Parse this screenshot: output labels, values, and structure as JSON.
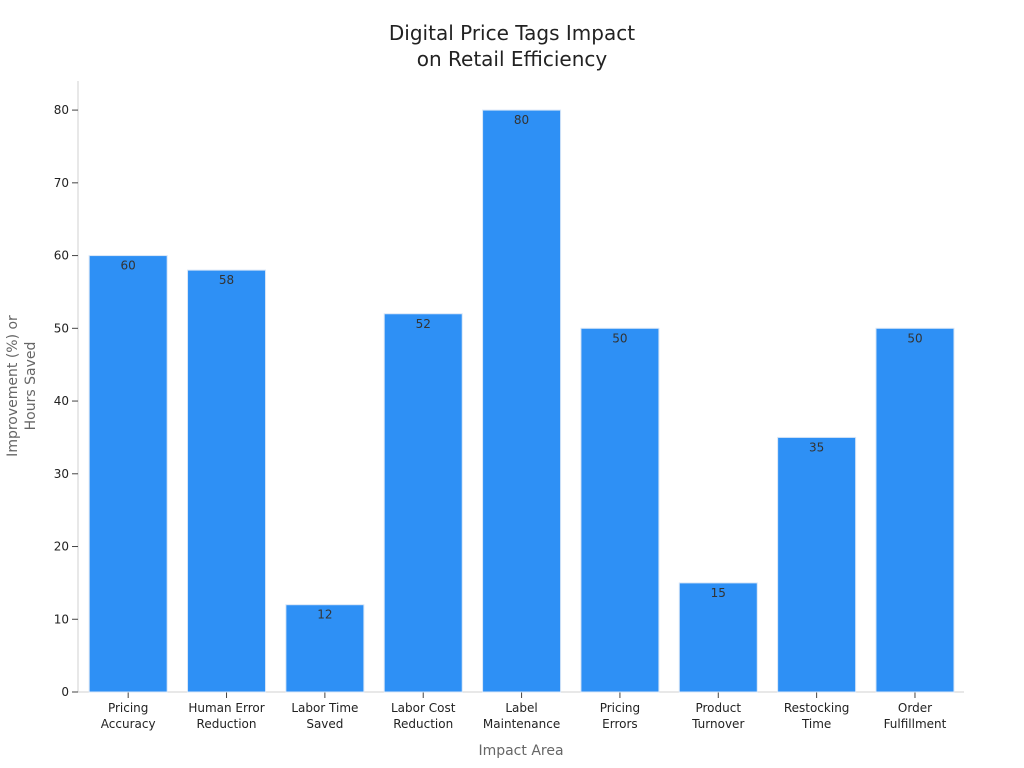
{
  "chart_data": {
    "type": "bar",
    "title": "Digital Price Tags Impact on Retail Efficiency",
    "title_lines": [
      "Digital Price Tags Impact",
      "on Retail Efficiency"
    ],
    "xlabel": "Impact Area",
    "ylabel": "Improvement (%) or Hours Saved",
    "ylabel_lines": [
      "Improvement (%) or",
      "Hours Saved"
    ],
    "categories": [
      "Pricing Accuracy",
      "Human Error Reduction",
      "Labor Time Saved",
      "Labor Cost Reduction",
      "Label Maintenance",
      "Pricing Errors",
      "Product Turnover",
      "Restocking Time",
      "Order Fulfillment"
    ],
    "category_lines": [
      [
        "Pricing",
        "Accuracy"
      ],
      [
        "Human Error",
        "Reduction"
      ],
      [
        "Labor Time",
        "Saved"
      ],
      [
        "Labor Cost",
        "Reduction"
      ],
      [
        "Label",
        "Maintenance"
      ],
      [
        "Pricing",
        "Errors"
      ],
      [
        "Product",
        "Turnover"
      ],
      [
        "Restocking",
        "Time"
      ],
      [
        "Order",
        "Fulfillment"
      ]
    ],
    "values": [
      60,
      58,
      12,
      52,
      80,
      50,
      15,
      35,
      50
    ],
    "ylim": [
      0,
      84
    ],
    "yticks": [
      0,
      10,
      20,
      30,
      40,
      50,
      60,
      70,
      80
    ],
    "grid": false,
    "legend": "none",
    "bar_color": "#2e90f5",
    "bar_edge_color": "#d8e6f7"
  }
}
